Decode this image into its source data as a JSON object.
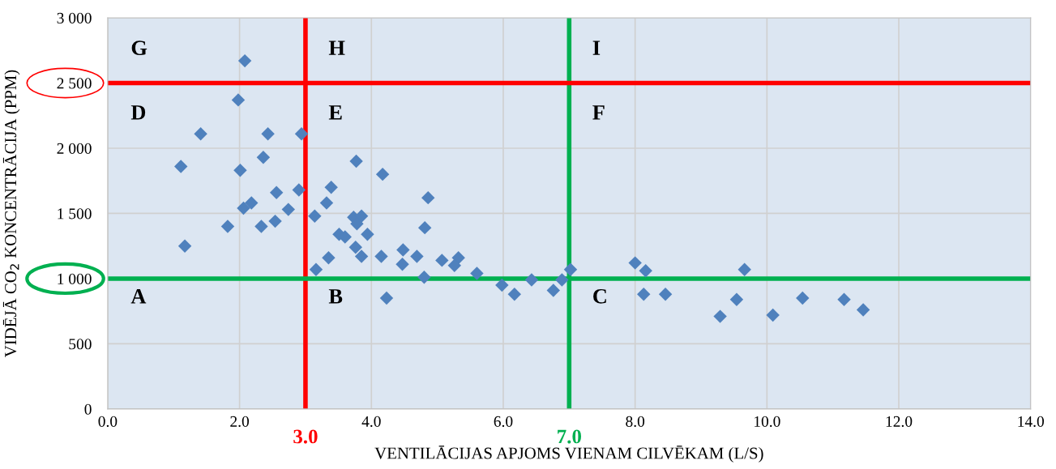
{
  "chart_data": {
    "type": "scatter",
    "xlabel": "VENTILĀCIJAS APJOMS VIENAM CILVĒKAM (L/S)",
    "ylabel": "VIDĒJĀ CO$_{2}$ KONCENTRĀCIJA (PPM)",
    "x": [
      2.08,
      1.98,
      1.41,
      2.43,
      2.94,
      2.36,
      1.11,
      2.01,
      3.39,
      2.56,
      2.9,
      2.18,
      2.06,
      3.32,
      2.74,
      3.14,
      1.82,
      2.33,
      2.54,
      3.51,
      3.6,
      1.17,
      3.35,
      3.16,
      3.77,
      4.17,
      4.86,
      3.73,
      3.85,
      3.78,
      3.94,
      4.81,
      3.76,
      3.85,
      4.15,
      4.48,
      4.47,
      4.69,
      5.07,
      5.32,
      5.26,
      4.8,
      4.23,
      5.6,
      5.98,
      6.17,
      6.43,
      6.76,
      6.89,
      7.02,
      8.0,
      8.16,
      8.13,
      8.46,
      9.66,
      9.54,
      9.29,
      10.09,
      10.54,
      11.17,
      11.46
    ],
    "series": [
      {
        "color": "#4f81bd",
        "values": [
          2670,
          2370,
          2110,
          2110,
          2110,
          1930,
          1860,
          1830,
          1700,
          1660,
          1680,
          1580,
          1540,
          1580,
          1530,
          1480,
          1400,
          1400,
          1440,
          1340,
          1320,
          1250,
          1160,
          1070,
          1900,
          1800,
          1620,
          1470,
          1480,
          1420,
          1340,
          1390,
          1240,
          1170,
          1170,
          1220,
          1110,
          1170,
          1140,
          1160,
          1100,
          1010,
          850,
          1040,
          950,
          880,
          990,
          910,
          990,
          1070,
          1120,
          1060,
          880,
          880,
          1070,
          840,
          710,
          720,
          850,
          840,
          760
        ]
      }
    ],
    "marker": "diamond",
    "xlim": [
      0,
      14
    ],
    "xticks": [
      {
        "value": 0,
        "label": "0.0"
      },
      {
        "value": 2,
        "label": "2.0"
      },
      {
        "value": 4,
        "label": "4.0"
      },
      {
        "value": 6,
        "label": "6.0"
      },
      {
        "value": 8,
        "label": "8.0"
      },
      {
        "value": 10,
        "label": "10.0"
      },
      {
        "value": 12,
        "label": "12.0"
      },
      {
        "value": 14,
        "label": "14.0"
      }
    ],
    "ylim": [
      0,
      3000
    ],
    "yticks": [
      0,
      500,
      {
        "value": 1000,
        "label": "1 000"
      },
      {
        "value": 1500,
        "label": "1 500"
      },
      {
        "value": 2000,
        "label": "2 000"
      },
      {
        "value": 2500,
        "label": "2 500"
      },
      {
        "value": 3000,
        "label": "3 000"
      }
    ],
    "grid": true,
    "ref_lines": [
      {
        "axis": "x",
        "value": 3,
        "label": "3.0",
        "color": "#ff0000"
      },
      {
        "axis": "x",
        "value": 7,
        "label": "7.0",
        "color": "#00b050"
      },
      {
        "axis": "y",
        "value": 2500,
        "color": "#ff0000"
      },
      {
        "axis": "y",
        "value": 1000,
        "color": "#00b050"
      }
    ],
    "annotations": [
      "G",
      "H",
      "I",
      "D",
      "E",
      "F",
      "A",
      "B",
      "C"
    ]
  }
}
